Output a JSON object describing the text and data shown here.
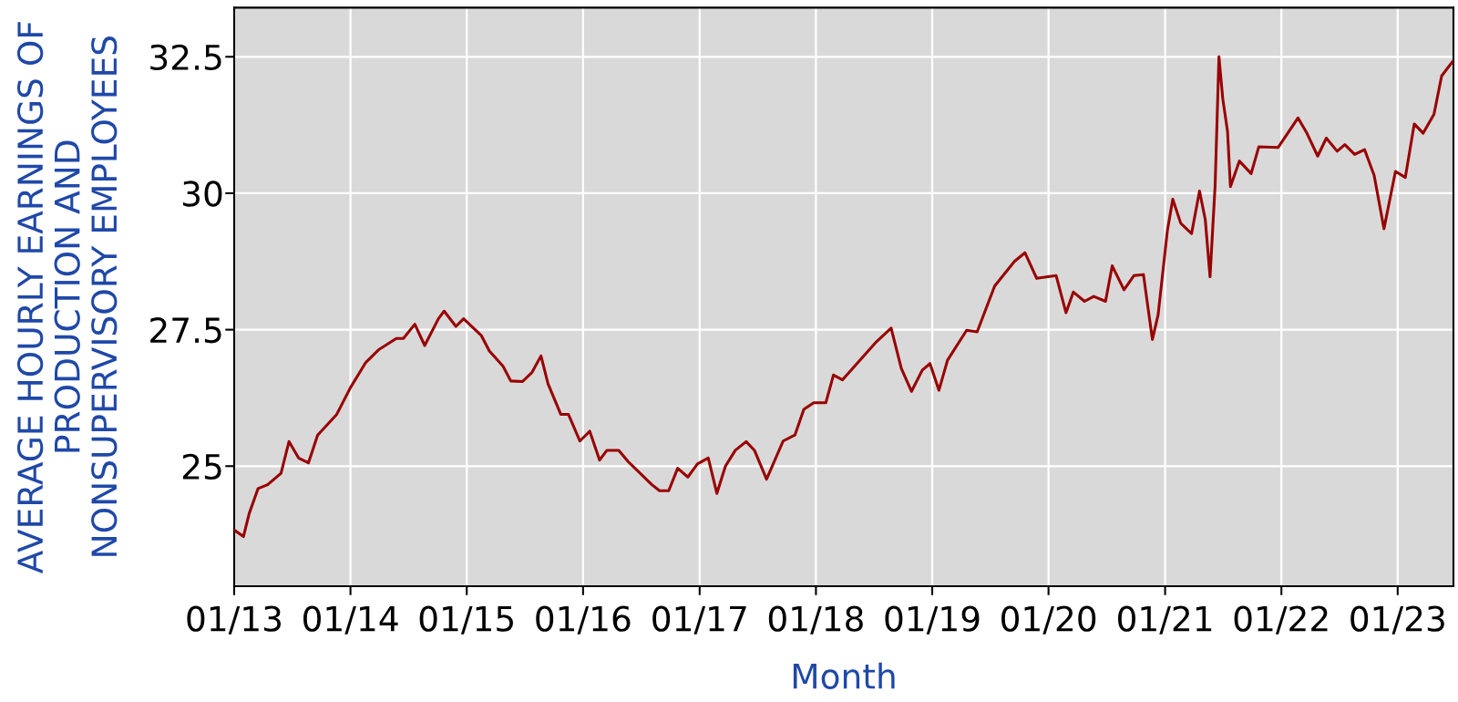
{
  "chart_data": {
    "type": "line",
    "xlabel": "Month",
    "ylabel": "AVERAGE HOURLY EARNINGS OF\nPRODUCTION AND\nNONSUPERVISORY EMPLOYEES",
    "x": [
      "2013-01-01",
      "2013-01-30",
      "2013-02-17",
      "2013-03-17",
      "2013-04-16",
      "2013-05-28",
      "2013-06-22",
      "2013-07-22",
      "2013-08-22",
      "2013-09-20",
      "2013-11-19",
      "2014-01-01",
      "2014-02-18",
      "2014-04-01",
      "2014-05-25",
      "2014-06-16",
      "2014-07-22",
      "2014-08-22",
      "2014-10-04",
      "2014-10-22",
      "2014-11-28",
      "2014-12-22",
      "2015-02-16",
      "2015-03-13",
      "2015-04-25",
      "2015-05-19",
      "2015-06-25",
      "2015-07-25",
      "2015-08-22",
      "2015-09-13",
      "2015-10-23",
      "2015-11-16",
      "2015-12-22",
      "2016-01-22",
      "2016-02-22",
      "2016-03-16",
      "2016-04-22",
      "2016-05-22",
      "2016-08-04",
      "2016-08-28",
      "2016-09-26",
      "2016-10-24",
      "2016-11-25",
      "2016-12-25",
      "2017-01-28",
      "2017-02-24",
      "2017-03-23",
      "2017-04-23",
      "2017-05-27",
      "2017-06-22",
      "2017-07-30",
      "2017-09-20",
      "2017-10-27",
      "2017-11-24",
      "2017-12-25",
      "2018-02-01",
      "2018-02-25",
      "2018-03-25",
      "2018-07-10",
      "2018-08-25",
      "2018-09-26",
      "2018-10-28",
      "2018-12-01",
      "2018-12-25",
      "2019-01-22",
      "2019-02-18",
      "2019-04-19",
      "2019-05-22",
      "2019-07-16",
      "2019-09-16",
      "2019-10-19",
      "2019-11-25",
      "2020-01-25",
      "2020-02-25",
      "2020-03-19",
      "2020-04-23",
      "2020-05-22",
      "2020-06-28",
      "2020-07-19",
      "2020-08-25",
      "2020-09-25",
      "2020-10-25",
      "2020-11-22",
      "2020-12-10",
      "2021-01-08",
      "2021-01-25",
      "2021-02-19",
      "2021-03-25",
      "2021-04-19",
      "2021-05-07",
      "2021-05-22",
      "2021-06-07",
      "2021-06-19",
      "2021-07-01",
      "2021-07-16",
      "2021-07-25",
      "2021-08-22",
      "2021-09-28",
      "2021-10-22",
      "2021-12-22",
      "2022-02-22",
      "2022-03-22",
      "2022-04-25",
      "2022-05-22",
      "2022-06-25",
      "2022-07-19",
      "2022-08-19",
      "2022-09-19",
      "2022-10-19",
      "2022-11-19",
      "2022-12-25",
      "2023-01-25",
      "2023-02-22",
      "2023-03-22",
      "2023-04-25",
      "2023-05-19",
      "2023-06-22"
    ],
    "series": [
      {
        "color": "#990000",
        "values": [
          23.83,
          23.71,
          24.13,
          24.59,
          24.66,
          24.87,
          25.45,
          25.15,
          25.06,
          25.57,
          25.95,
          26.44,
          26.9,
          27.14,
          27.34,
          27.34,
          27.6,
          27.21,
          27.7,
          27.84,
          27.56,
          27.7,
          27.39,
          27.11,
          26.83,
          26.56,
          26.55,
          26.72,
          27.02,
          26.51,
          25.95,
          25.95,
          25.46,
          25.64,
          25.11,
          25.29,
          25.29,
          25.08,
          24.66,
          24.55,
          24.55,
          24.96,
          24.8,
          25.04,
          25.15,
          24.5,
          25.0,
          25.29,
          25.45,
          25.29,
          24.76,
          25.46,
          25.57,
          26.04,
          26.16,
          26.16,
          26.67,
          26.58,
          27.28,
          27.53,
          26.79,
          26.37,
          26.76,
          26.88,
          26.39,
          26.94,
          27.49,
          27.46,
          28.3,
          28.75,
          28.91,
          28.44,
          28.49,
          27.81,
          28.19,
          28.02,
          28.11,
          28.02,
          28.67,
          28.23,
          28.49,
          28.51,
          27.32,
          27.77,
          29.31,
          29.89,
          29.45,
          29.26,
          30.04,
          29.52,
          28.47,
          30.15,
          32.5,
          31.73,
          31.13,
          30.12,
          30.59,
          30.36,
          30.85,
          30.84,
          31.38,
          31.1,
          30.68,
          31.01,
          30.77,
          30.89,
          30.71,
          30.8,
          30.33,
          29.35,
          30.4,
          30.29,
          31.27,
          31.1,
          31.45,
          32.15,
          32.41
        ]
      }
    ],
    "xlim": [
      "2013-01-01",
      "2023-06-25"
    ],
    "xticks": [
      {
        "value": "2013-01",
        "label": "01/13"
      },
      {
        "value": "2014-01",
        "label": "01/14"
      },
      {
        "value": "2015-01",
        "label": "01/15"
      },
      {
        "value": "2016-01",
        "label": "01/16"
      },
      {
        "value": "2017-01",
        "label": "01/17"
      },
      {
        "value": "2018-01",
        "label": "01/18"
      },
      {
        "value": "2019-01",
        "label": "01/19"
      },
      {
        "value": "2020-01",
        "label": "01/20"
      },
      {
        "value": "2021-01",
        "label": "01/21"
      },
      {
        "value": "2022-01",
        "label": "01/22"
      },
      {
        "value": "2023-01",
        "label": "01/23"
      }
    ],
    "ylim": [
      22.8,
      33.4
    ],
    "yticks": [
      25,
      27.5,
      30,
      32.5
    ],
    "grid": true
  }
}
